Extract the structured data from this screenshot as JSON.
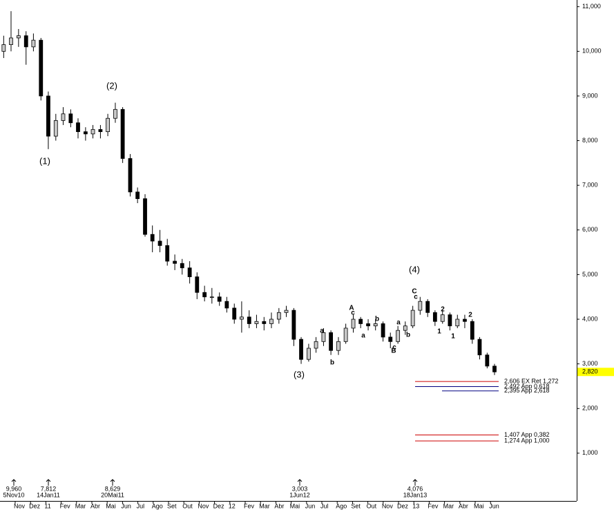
{
  "chart_data": {
    "type": "candlestick",
    "x": [
      -0.75,
      -0.27,
      0.22,
      0.71,
      1.19,
      1.68,
      2.16,
      2.65,
      3.13,
      3.62,
      4.1,
      4.59,
      5.07,
      5.56,
      6.04,
      6.53,
      7.01,
      7.5,
      7.98,
      8.47,
      8.95,
      9.44,
      9.92,
      10.41,
      10.89,
      11.38,
      11.86,
      12.35,
      12.83,
      13.32,
      13.8,
      14.29,
      14.77,
      15.26,
      15.74,
      16.23,
      16.71,
      17.2,
      17.68,
      18.17,
      18.65,
      19.14,
      19.62,
      20.11,
      20.59,
      21.08,
      21.56,
      22.05,
      22.53,
      23.02,
      23.5,
      23.99,
      24.47,
      24.96,
      25.44,
      25.93,
      26.41,
      26.9,
      27.38,
      27.87,
      28.35,
      28.84,
      29.32,
      29.81,
      30.29,
      30.78,
      31.26
    ],
    "open": [
      10.0,
      10.15,
      10.3,
      10.35,
      10.1,
      10.25,
      9.0,
      8.1,
      8.45,
      8.6,
      8.4,
      8.2,
      8.15,
      8.25,
      8.2,
      8.5,
      8.7,
      7.6,
      6.85,
      6.7,
      5.9,
      5.75,
      5.65,
      5.3,
      5.25,
      5.15,
      4.95,
      4.6,
      4.5,
      4.5,
      4.4,
      4.25,
      4.0,
      4.05,
      3.9,
      3.95,
      3.9,
      4.0,
      4.15,
      4.2,
      3.55,
      3.1,
      3.35,
      3.5,
      3.7,
      3.3,
      3.5,
      3.8,
      4.0,
      3.9,
      3.85,
      3.9,
      3.6,
      3.5,
      3.75,
      3.85,
      4.2,
      4.4,
      4.15,
      3.95,
      4.1,
      3.85,
      4.0,
      3.95,
      3.55,
      3.2,
      2.95
    ],
    "high": [
      10.35,
      10.9,
      10.5,
      10.45,
      10.4,
      10.3,
      9.1,
      8.6,
      8.75,
      8.7,
      8.5,
      8.3,
      8.35,
      8.35,
      8.6,
      8.85,
      8.75,
      7.7,
      6.95,
      6.8,
      6.1,
      6.0,
      5.8,
      5.45,
      5.35,
      5.3,
      5.05,
      4.75,
      4.7,
      4.6,
      4.5,
      4.35,
      4.4,
      4.2,
      4.1,
      4.05,
      4.15,
      4.25,
      4.3,
      4.25,
      3.6,
      3.45,
      3.6,
      3.8,
      3.75,
      3.6,
      3.9,
      4.1,
      4.05,
      4.0,
      4.0,
      3.95,
      3.7,
      3.85,
      3.95,
      4.3,
      4.5,
      4.45,
      4.2,
      4.2,
      4.15,
      4.1,
      4.1,
      4.0,
      3.6,
      3.25,
      3.0
    ],
    "low": [
      9.85,
      10.0,
      10.1,
      9.7,
      10.0,
      8.9,
      7.81,
      8.0,
      8.35,
      8.3,
      8.05,
      8.0,
      8.05,
      8.05,
      8.1,
      8.4,
      7.5,
      6.75,
      6.6,
      5.85,
      5.5,
      5.5,
      5.2,
      5.1,
      5.0,
      4.8,
      4.45,
      4.4,
      4.35,
      4.3,
      4.15,
      3.9,
      3.7,
      3.8,
      3.8,
      3.75,
      3.8,
      3.9,
      4.05,
      3.4,
      3.0,
      3.05,
      3.25,
      3.4,
      3.2,
      3.2,
      3.45,
      3.7,
      3.8,
      3.75,
      3.75,
      3.5,
      3.35,
      3.45,
      3.65,
      3.8,
      4.1,
      4.05,
      3.85,
      3.9,
      3.75,
      3.8,
      3.8,
      3.45,
      3.1,
      2.9,
      2.75
    ],
    "close": [
      10.15,
      10.3,
      10.35,
      10.1,
      10.25,
      9.0,
      8.1,
      8.45,
      8.6,
      8.4,
      8.2,
      8.15,
      8.25,
      8.2,
      8.5,
      8.7,
      7.6,
      6.85,
      6.7,
      5.9,
      5.75,
      5.65,
      5.3,
      5.25,
      5.15,
      4.95,
      4.6,
      4.5,
      4.5,
      4.4,
      4.25,
      4.0,
      4.05,
      3.9,
      3.95,
      3.9,
      4.0,
      4.15,
      4.2,
      3.55,
      3.1,
      3.35,
      3.5,
      3.7,
      3.3,
      3.5,
      3.8,
      4.0,
      3.9,
      3.85,
      3.9,
      3.6,
      3.5,
      3.75,
      3.85,
      4.2,
      4.4,
      4.15,
      3.95,
      4.1,
      3.85,
      4.0,
      3.95,
      3.55,
      3.2,
      2.95,
      2.82
    ],
    "up_color": "#c8c8c8",
    "down_color": "#000000",
    "xlim": [
      -0.99,
      36.62
    ],
    "ylim": [
      -0.07,
      11.15
    ],
    "xticks": [
      {
        "value": 0,
        "label": "Nov"
      },
      {
        "value": 1,
        "label": "Dez"
      },
      {
        "value": 2,
        "label": "11"
      },
      {
        "value": 3,
        "label": "Fev"
      },
      {
        "value": 4,
        "label": "Mar"
      },
      {
        "value": 5,
        "label": "Abr"
      },
      {
        "value": 6,
        "label": "Mai"
      },
      {
        "value": 7,
        "label": "Jun"
      },
      {
        "value": 8,
        "label": "Jul"
      },
      {
        "value": 9,
        "label": "Ago"
      },
      {
        "value": 10,
        "label": "Set"
      },
      {
        "value": 11,
        "label": "Out"
      },
      {
        "value": 12,
        "label": "Nov"
      },
      {
        "value": 13,
        "label": "Dez"
      },
      {
        "value": 14,
        "label": "12"
      },
      {
        "value": 15,
        "label": "Fev"
      },
      {
        "value": 16,
        "label": "Mar"
      },
      {
        "value": 17,
        "label": "Abr"
      },
      {
        "value": 18,
        "label": "Mai"
      },
      {
        "value": 19,
        "label": "Jun"
      },
      {
        "value": 20,
        "label": "Jul"
      },
      {
        "value": 21,
        "label": "Ago"
      },
      {
        "value": 22,
        "label": "Set"
      },
      {
        "value": 23,
        "label": "Out"
      },
      {
        "value": 24,
        "label": "Nov"
      },
      {
        "value": 25,
        "label": "Dez"
      },
      {
        "value": 26,
        "label": "13"
      },
      {
        "value": 27,
        "label": "Fev"
      },
      {
        "value": 28,
        "label": "Mar"
      },
      {
        "value": 29,
        "label": "Abr"
      },
      {
        "value": 30,
        "label": "Mai"
      },
      {
        "value": 31,
        "label": "Jun"
      }
    ],
    "yticks": [
      {
        "value": 1,
        "label": "1,000"
      },
      {
        "value": 2,
        "label": "2,000"
      },
      {
        "value": 3,
        "label": "3,000"
      },
      {
        "value": 4,
        "label": "4,000"
      },
      {
        "value": 5,
        "label": "5,000"
      },
      {
        "value": 6,
        "label": "6,000"
      },
      {
        "value": 7,
        "label": "7,000"
      },
      {
        "value": 8,
        "label": "8,000"
      },
      {
        "value": 9,
        "label": "9,000"
      },
      {
        "value": 10,
        "label": "10,000"
      },
      {
        "value": 11,
        "label": "11,000"
      }
    ],
    "last": {
      "value": 2.82,
      "label": "2,820",
      "color": "#ffff00"
    },
    "levels": [
      {
        "value": 2.606,
        "label": "2,606 EX Ret 1,272",
        "color": "#cc0000"
      },
      {
        "value": 2.492,
        "label": "2,492 App 0,618",
        "color": "#000080"
      },
      {
        "value": 2.395,
        "label": "2,395 App 2,618",
        "color": "#000080"
      },
      {
        "value": 1.407,
        "label": "1,407 App 0,382",
        "color": "#cc0000"
      },
      {
        "value": 1.274,
        "label": "1,274 App 1,000",
        "color": "#cc0000"
      }
    ],
    "pivots": [
      {
        "label": "9,960",
        "date": "5Nov10"
      },
      {
        "label": "7,812",
        "date": "14Jan11"
      },
      {
        "label": "8,629",
        "date": "20Mai11"
      },
      {
        "label": "3,003",
        "date": "1Jun12"
      },
      {
        "label": "4,076",
        "date": "18Jan13"
      }
    ],
    "annotations": [
      {
        "text": "(1)",
        "color": "#000000"
      },
      {
        "text": "(2)",
        "color": "#000000"
      },
      {
        "text": "(3)",
        "color": "#000000"
      },
      {
        "text": "(4)",
        "color": "#000000"
      },
      {
        "text": "a",
        "color": "#000000"
      },
      {
        "text": "b",
        "color": "#000000"
      },
      {
        "text": "A",
        "color": "#1a1aa0"
      },
      {
        "text": "c",
        "color": "#000000"
      },
      {
        "text": "a",
        "color": "#000000"
      },
      {
        "text": "b",
        "color": "#000000"
      },
      {
        "text": "a",
        "color": "#000000"
      },
      {
        "text": "c",
        "color": "#000000"
      },
      {
        "text": "B",
        "color": "#1a1aa0"
      },
      {
        "text": "b",
        "color": "#000000"
      },
      {
        "text": "C",
        "color": "#1a1aa0"
      },
      {
        "text": "c",
        "color": "#000000"
      },
      {
        "text": "2",
        "color": "#000000"
      },
      {
        "text": "1",
        "color": "#000000"
      },
      {
        "text": "1",
        "color": "#000000"
      },
      {
        "text": "2",
        "color": "#000000"
      }
    ]
  }
}
